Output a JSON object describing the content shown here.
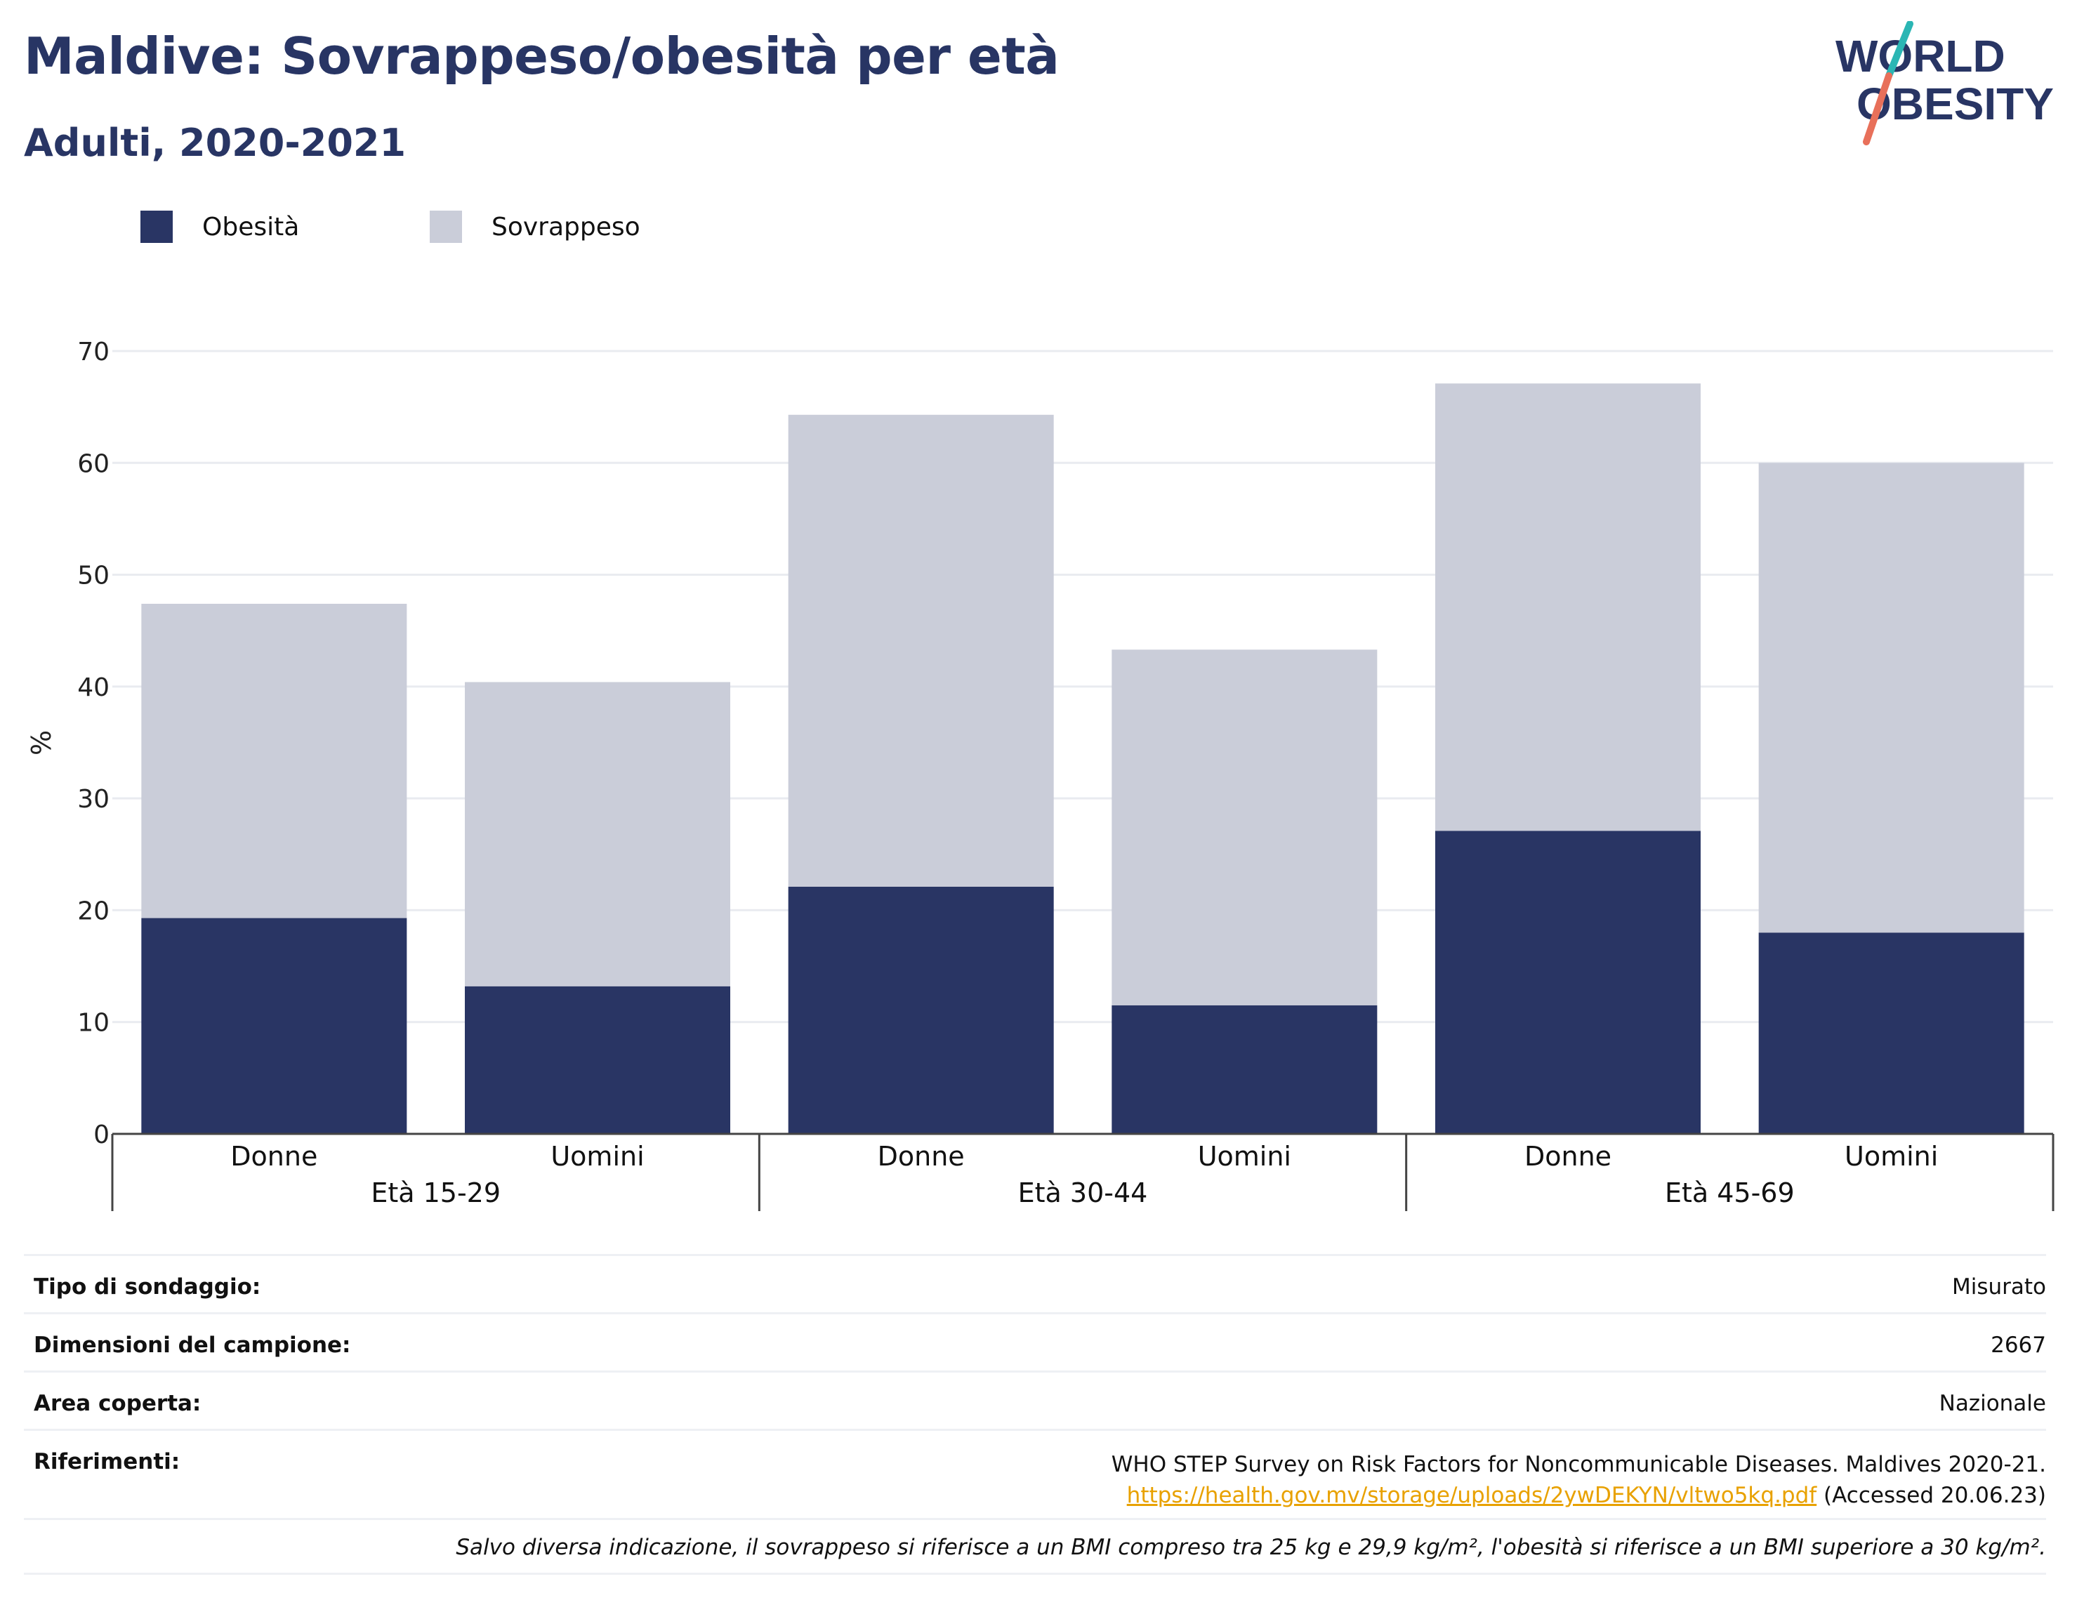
{
  "header": {
    "title": "Maldive: Sovrappeso/obesità per età",
    "subtitle": "Adulti, 2020-2021"
  },
  "logo": {
    "line1": "WORLD",
    "line2": "OBESITY",
    "colors": {
      "text": "#283564",
      "slash_top": "#2bb6b4",
      "slash_bottom": "#e8705a"
    }
  },
  "colors": {
    "obesity": "#293564",
    "overweight": "#cacdd9",
    "grid": "#e9ebf0",
    "axis": "#444444"
  },
  "chart_data": {
    "type": "bar",
    "stacked": true,
    "ylabel": "%",
    "ylim": [
      0,
      70
    ],
    "yticks": [
      0,
      10,
      20,
      30,
      40,
      50,
      60,
      70
    ],
    "grid": true,
    "legend_position": "top-left",
    "groups": [
      "Età 15-29",
      "Età 30-44",
      "Età 45-69"
    ],
    "categories": [
      "Donne",
      "Uomini",
      "Donne",
      "Uomini",
      "Donne",
      "Uomini"
    ],
    "group_index": [
      0,
      0,
      1,
      1,
      2,
      2
    ],
    "series": [
      {
        "name": "Obesità",
        "values": [
          19.3,
          13.2,
          22.1,
          11.5,
          27.1,
          18.0
        ]
      },
      {
        "name": "Sovrappeso",
        "values": [
          28.1,
          27.2,
          42.2,
          31.8,
          40.0,
          42.0
        ]
      }
    ]
  },
  "meta": {
    "survey_type_label": "Tipo di sondaggio:",
    "survey_type_value": "Misurato",
    "sample_size_label": "Dimensioni del campione:",
    "sample_size_value": "2667",
    "area_label": "Area coperta:",
    "area_value": "Nazionale",
    "references_label": "Riferimenti:",
    "references_text": "WHO STEP Survey on Risk Factors for Noncommunicable Diseases. Maldives 2020-21.",
    "references_link": "https://health.gov.mv/storage/uploads/2ywDEKYN/vltwo5kq.pdf",
    "references_accessed": " (Accessed 20.06.23)",
    "note": "Salvo diversa indicazione, il sovrappeso si riferisce a un BMI compreso tra 25 kg e 29,9 kg/m², l'obesità si riferisce a un BMI superiore a 30 kg/m²."
  }
}
